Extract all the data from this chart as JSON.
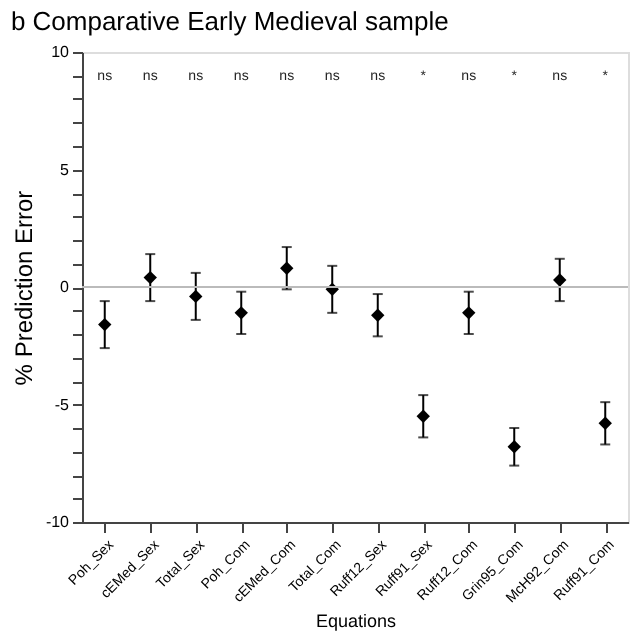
{
  "chart_data": {
    "type": "scatter",
    "title": "b  Comparative Early Medieval sample",
    "xlabel": "Equations",
    "ylabel": "% Prediction Error",
    "categories": [
      "Poh_Sex",
      "cEMed_Sex",
      "Total_Sex",
      "Poh_Com",
      "cEMed_Com",
      "Total_Com",
      "Ruff12_Sex",
      "Ruff91_Sex",
      "Ruff12_Com",
      "Grin95_Com",
      "McH92_Com",
      "Ruff91_Com"
    ],
    "series": [
      {
        "color": "#000000",
        "values": [
          -1.6,
          0.4,
          -0.4,
          -1.1,
          0.8,
          -0.1,
          -1.2,
          -5.5,
          -1.1,
          -6.8,
          0.3,
          -5.8
        ],
        "errors": [
          1.0,
          1.0,
          1.0,
          0.9,
          0.9,
          1.0,
          0.9,
          0.9,
          0.9,
          0.8,
          0.9,
          0.9
        ]
      }
    ],
    "marker": "diamond",
    "grid": false,
    "ylim": [
      -10,
      10
    ],
    "yticks": [
      -10,
      {
        "value": -9,
        "label": null
      },
      {
        "value": -8,
        "label": null
      },
      {
        "value": -7,
        "label": null
      },
      {
        "value": -6,
        "label": null
      },
      -5,
      {
        "value": -4,
        "label": null
      },
      {
        "value": -3,
        "label": null
      },
      {
        "value": -2,
        "label": null
      },
      {
        "value": -1,
        "label": null
      },
      0,
      {
        "value": 1,
        "label": null
      },
      {
        "value": 2,
        "label": null
      },
      {
        "value": 3,
        "label": null
      },
      {
        "value": 4,
        "label": null
      },
      5,
      {
        "value": 6,
        "label": null
      },
      {
        "value": 7,
        "label": null
      },
      {
        "value": 8,
        "label": null
      },
      {
        "value": 9,
        "label": null
      },
      10
    ],
    "ref_lines": [
      {
        "axis": "y",
        "value": 0,
        "color": "#bbbbbb"
      }
    ],
    "annotations": [
      "ns",
      "ns",
      "ns",
      "ns",
      "ns",
      "ns",
      "ns",
      "*",
      "ns",
      "*",
      "ns",
      "*"
    ]
  }
}
